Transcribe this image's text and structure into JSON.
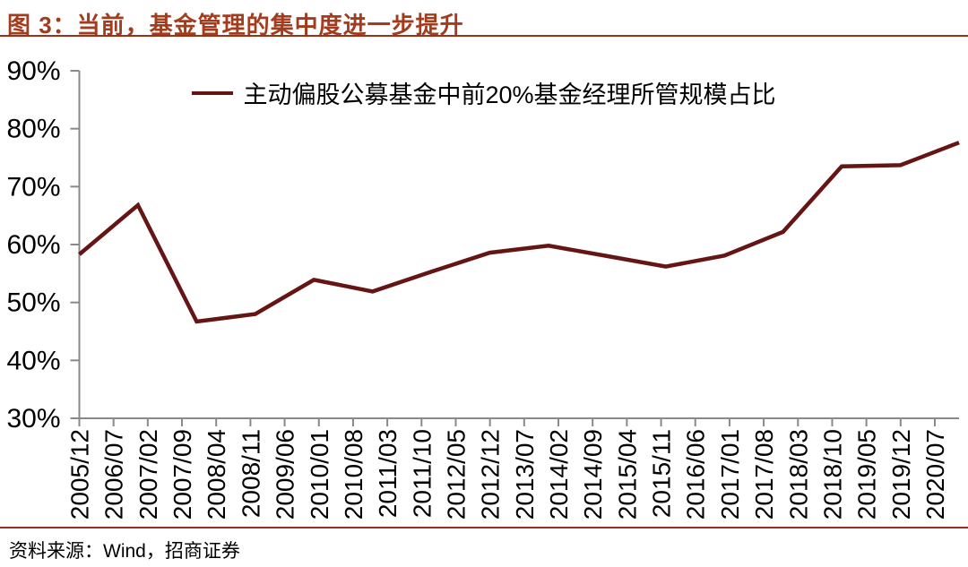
{
  "page": {
    "title": "图 3：当前，基金管理的集中度进一步提升",
    "source_note": "资料来源：Wind，招商证券"
  },
  "chart_data": {
    "type": "line",
    "title": "图 3：当前，基金管理的集中度进一步提升",
    "legend_position": "top-center",
    "grid": false,
    "ylim": [
      30,
      90
    ],
    "y_tick_labels": [
      "90%",
      "80%",
      "70%",
      "60%",
      "50%",
      "40%",
      "30%"
    ],
    "x_tick_labels": [
      "2005/12",
      "2006/07",
      "2007/02",
      "2007/09",
      "2008/04",
      "2008/11",
      "2009/06",
      "2010/01",
      "2010/08",
      "2011/03",
      "2011/10",
      "2012/05",
      "2012/12",
      "2013/07",
      "2014/02",
      "2014/09",
      "2015/04",
      "2015/11",
      "2016/06",
      "2017/01",
      "2017/08",
      "2018/03",
      "2018/10",
      "2019/05",
      "2019/12",
      "2020/07"
    ],
    "series": [
      {
        "name": "主动偏股公募基金中前20%基金经理所管规模占比",
        "color": "#651514",
        "x_points_inferred": [
          "2005/12",
          "2006/12",
          "2007/12",
          "2008/12",
          "2009/12",
          "2010/12",
          "2011/12",
          "2012/12",
          "2013/12",
          "2014/12",
          "2015/12",
          "2016/12",
          "2017/12",
          "2018/12",
          "2019/12",
          "2020/12"
        ],
        "values": [
          58.3,
          66.8,
          46.7,
          48.0,
          53.9,
          51.9,
          55.3,
          58.6,
          59.8,
          58.0,
          56.2,
          58.1,
          62.2,
          73.5,
          73.7,
          77.6
        ]
      }
    ],
    "colors": {
      "title": "#A23C1E",
      "title_rule": "#993318",
      "line": "#651514",
      "axis": "#898989",
      "text": "#000000",
      "footer_rule": "#943026",
      "background": "#FFFFFF"
    }
  }
}
